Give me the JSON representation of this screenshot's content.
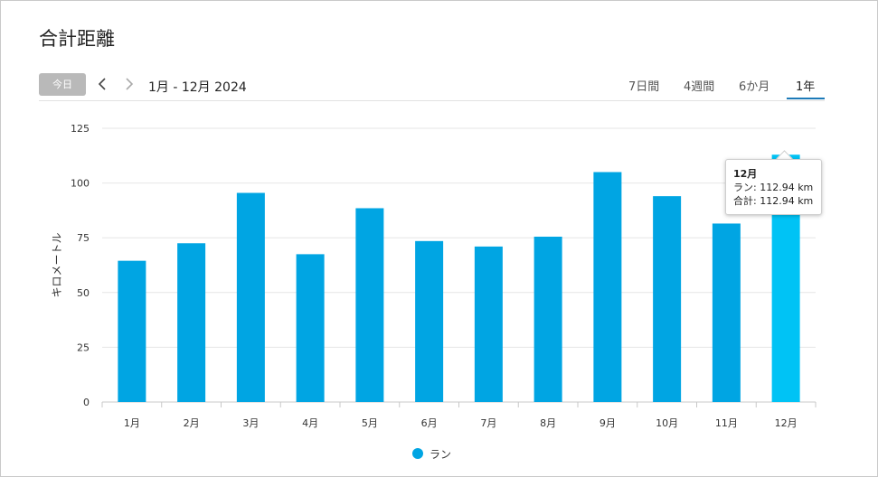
{
  "page": {
    "title": "合計距離"
  },
  "toolbar": {
    "today_label": "今日",
    "range_label": "1月 - 12月 2024",
    "tabs": [
      {
        "label": "7日間",
        "active": false
      },
      {
        "label": "4週間",
        "active": false
      },
      {
        "label": "6か月",
        "active": false
      },
      {
        "label": "1年",
        "active": true
      }
    ],
    "icons": {
      "prev": "chevron-left-icon",
      "next": "chevron-right-icon"
    }
  },
  "chart_data": {
    "type": "bar",
    "ylabel": "キロメートル",
    "xlabel": "",
    "ylim": [
      0,
      125
    ],
    "yticks": [
      0,
      25,
      50,
      75,
      100,
      125
    ],
    "grid": true,
    "categories": [
      "1月",
      "2月",
      "3月",
      "4月",
      "5月",
      "6月",
      "7月",
      "8月",
      "9月",
      "10月",
      "11月",
      "12月"
    ],
    "series": [
      {
        "name": "ラン",
        "color": "#00a5e3",
        "highlight_color": "#00c3f5",
        "values": [
          64.5,
          72.5,
          95.5,
          67.5,
          88.5,
          73.5,
          71,
          75.5,
          105,
          94,
          81.5,
          112.94
        ]
      }
    ],
    "highlighted_index": 11,
    "legend_position": "bottom"
  },
  "tooltip": {
    "title": "12月",
    "line1": "ラン: 112.94 km",
    "line2": "合計: 112.94 km"
  },
  "legend": {
    "label": "ラン",
    "color": "#00a5e3"
  }
}
